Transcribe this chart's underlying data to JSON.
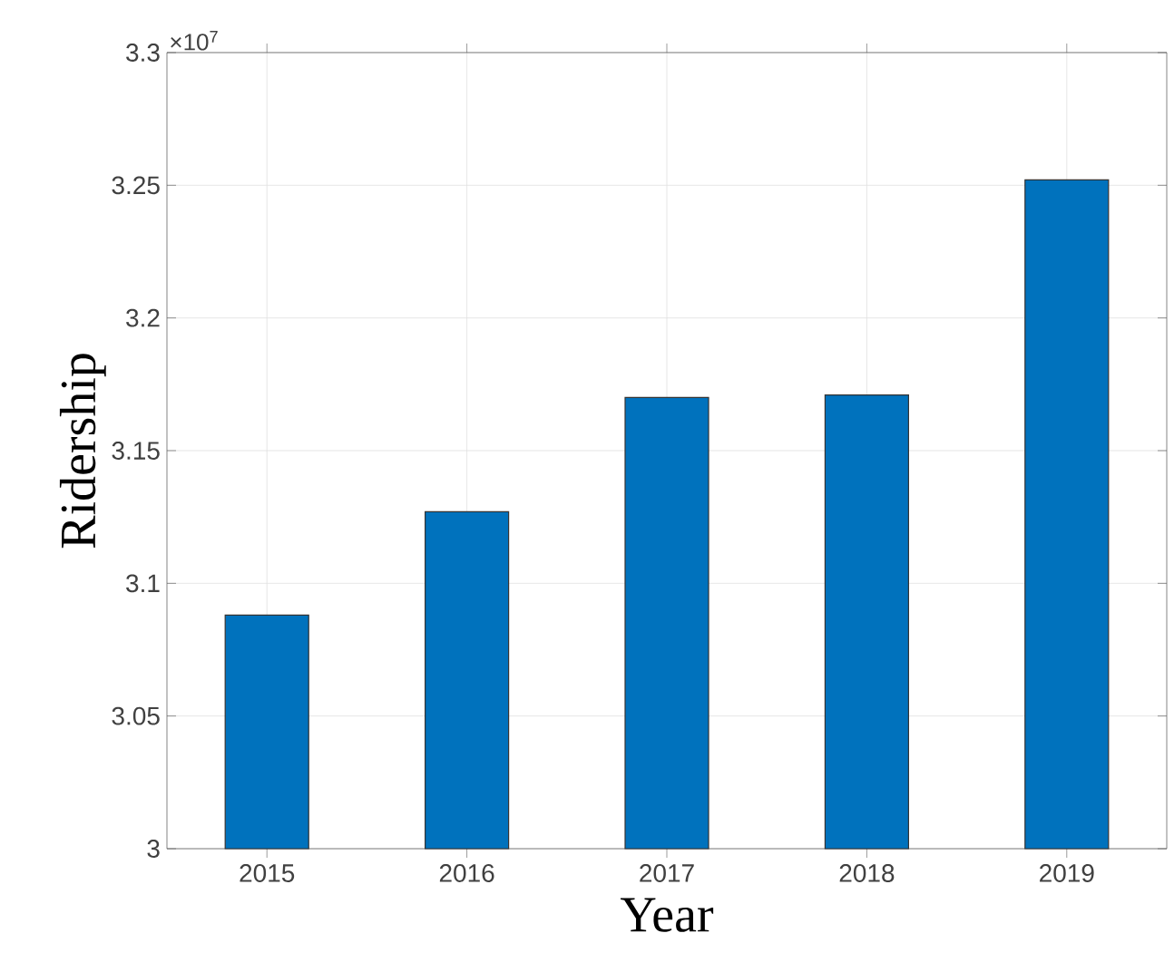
{
  "chart_data": {
    "type": "bar",
    "xlabel": "Year",
    "ylabel": "Ridership",
    "annotations": [
      "×10$^{7}$"
    ],
    "categories": [
      "2015",
      "2016",
      "2017",
      "2018",
      "2019"
    ],
    "values": [
      3.088,
      3.127,
      3.17,
      3.171,
      3.252
    ],
    "color": "#0072bd",
    "ylim": [
      3,
      3.3
    ],
    "yticks": [
      3,
      3.05,
      3.1,
      3.15,
      3.2,
      3.25,
      3.3
    ],
    "grid": true
  }
}
